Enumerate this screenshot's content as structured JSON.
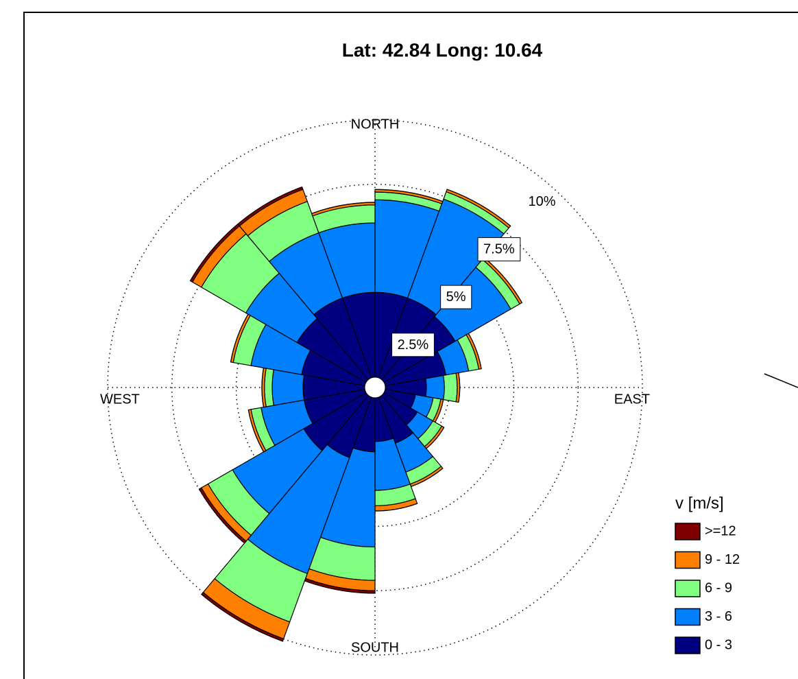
{
  "chart_data": {
    "type": "windrose",
    "title": "Lat: 42.84 Long: 10.64",
    "directions": {
      "north": "NORTH",
      "east": "EAST",
      "south": "SOUTH",
      "west": "WEST"
    },
    "legend_title": "v [m/s]",
    "categories": [
      null,
      null,
      null,
      null,
      null,
      null,
      null,
      null,
      null,
      null,
      null,
      null,
      null,
      null,
      null,
      null,
      null,
      null
    ],
    "series": [
      {
        "name": ">=12",
        "color": "#800000",
        "values": [
          0,
          0,
          0,
          0,
          0,
          0,
          0,
          0,
          0,
          0.1,
          0.1,
          0.1,
          0,
          0,
          0,
          0.1,
          0.1,
          0
        ]
      },
      {
        "name": "9 - 12",
        "color": "#ff8000",
        "values": [
          0.1,
          0.1,
          0.1,
          0.1,
          0.1,
          0.1,
          0.1,
          0.1,
          0.2,
          0.4,
          0.7,
          0.3,
          0.1,
          0.1,
          0.1,
          0.4,
          0.5,
          0.1
        ]
      },
      {
        "name": "6 - 9",
        "color": "#80ff80",
        "values": [
          0.3,
          0.3,
          0.4,
          0.4,
          0.5,
          0.3,
          0.4,
          0.5,
          0.6,
          1.3,
          2.0,
          1.1,
          0.4,
          0.3,
          0.7,
          2.0,
          1.3,
          0.7
        ]
      },
      {
        "name": "3 - 6",
        "color": "#0080ff",
        "values": [
          3.6,
          4.1,
          2.5,
          0.9,
          0.7,
          0.7,
          0.7,
          1.2,
          1.9,
          3.7,
          4.8,
          3.2,
          1.7,
          1.2,
          2.0,
          2.3,
          2.7,
          2.7
        ]
      },
      {
        "name": "0 - 3",
        "color": "#000080",
        "values": [
          3.3,
          3.3,
          3.2,
          2.4,
          1.6,
          1.2,
          1.5,
          1.9,
          1.7,
          2.1,
          2.5,
          2.8,
          2.4,
          2.4,
          2.5,
          3.1,
          3.3,
          3.3
        ]
      }
    ],
    "rlim": [
      0,
      10
    ],
    "rticks": [
      {
        "value": 2.5,
        "label": "2.5%"
      },
      {
        "value": 5,
        "label": "5%"
      },
      {
        "value": 7.5,
        "label": "7.5%"
      },
      {
        "value": 10,
        "label": "10%"
      }
    ],
    "grid": true
  }
}
